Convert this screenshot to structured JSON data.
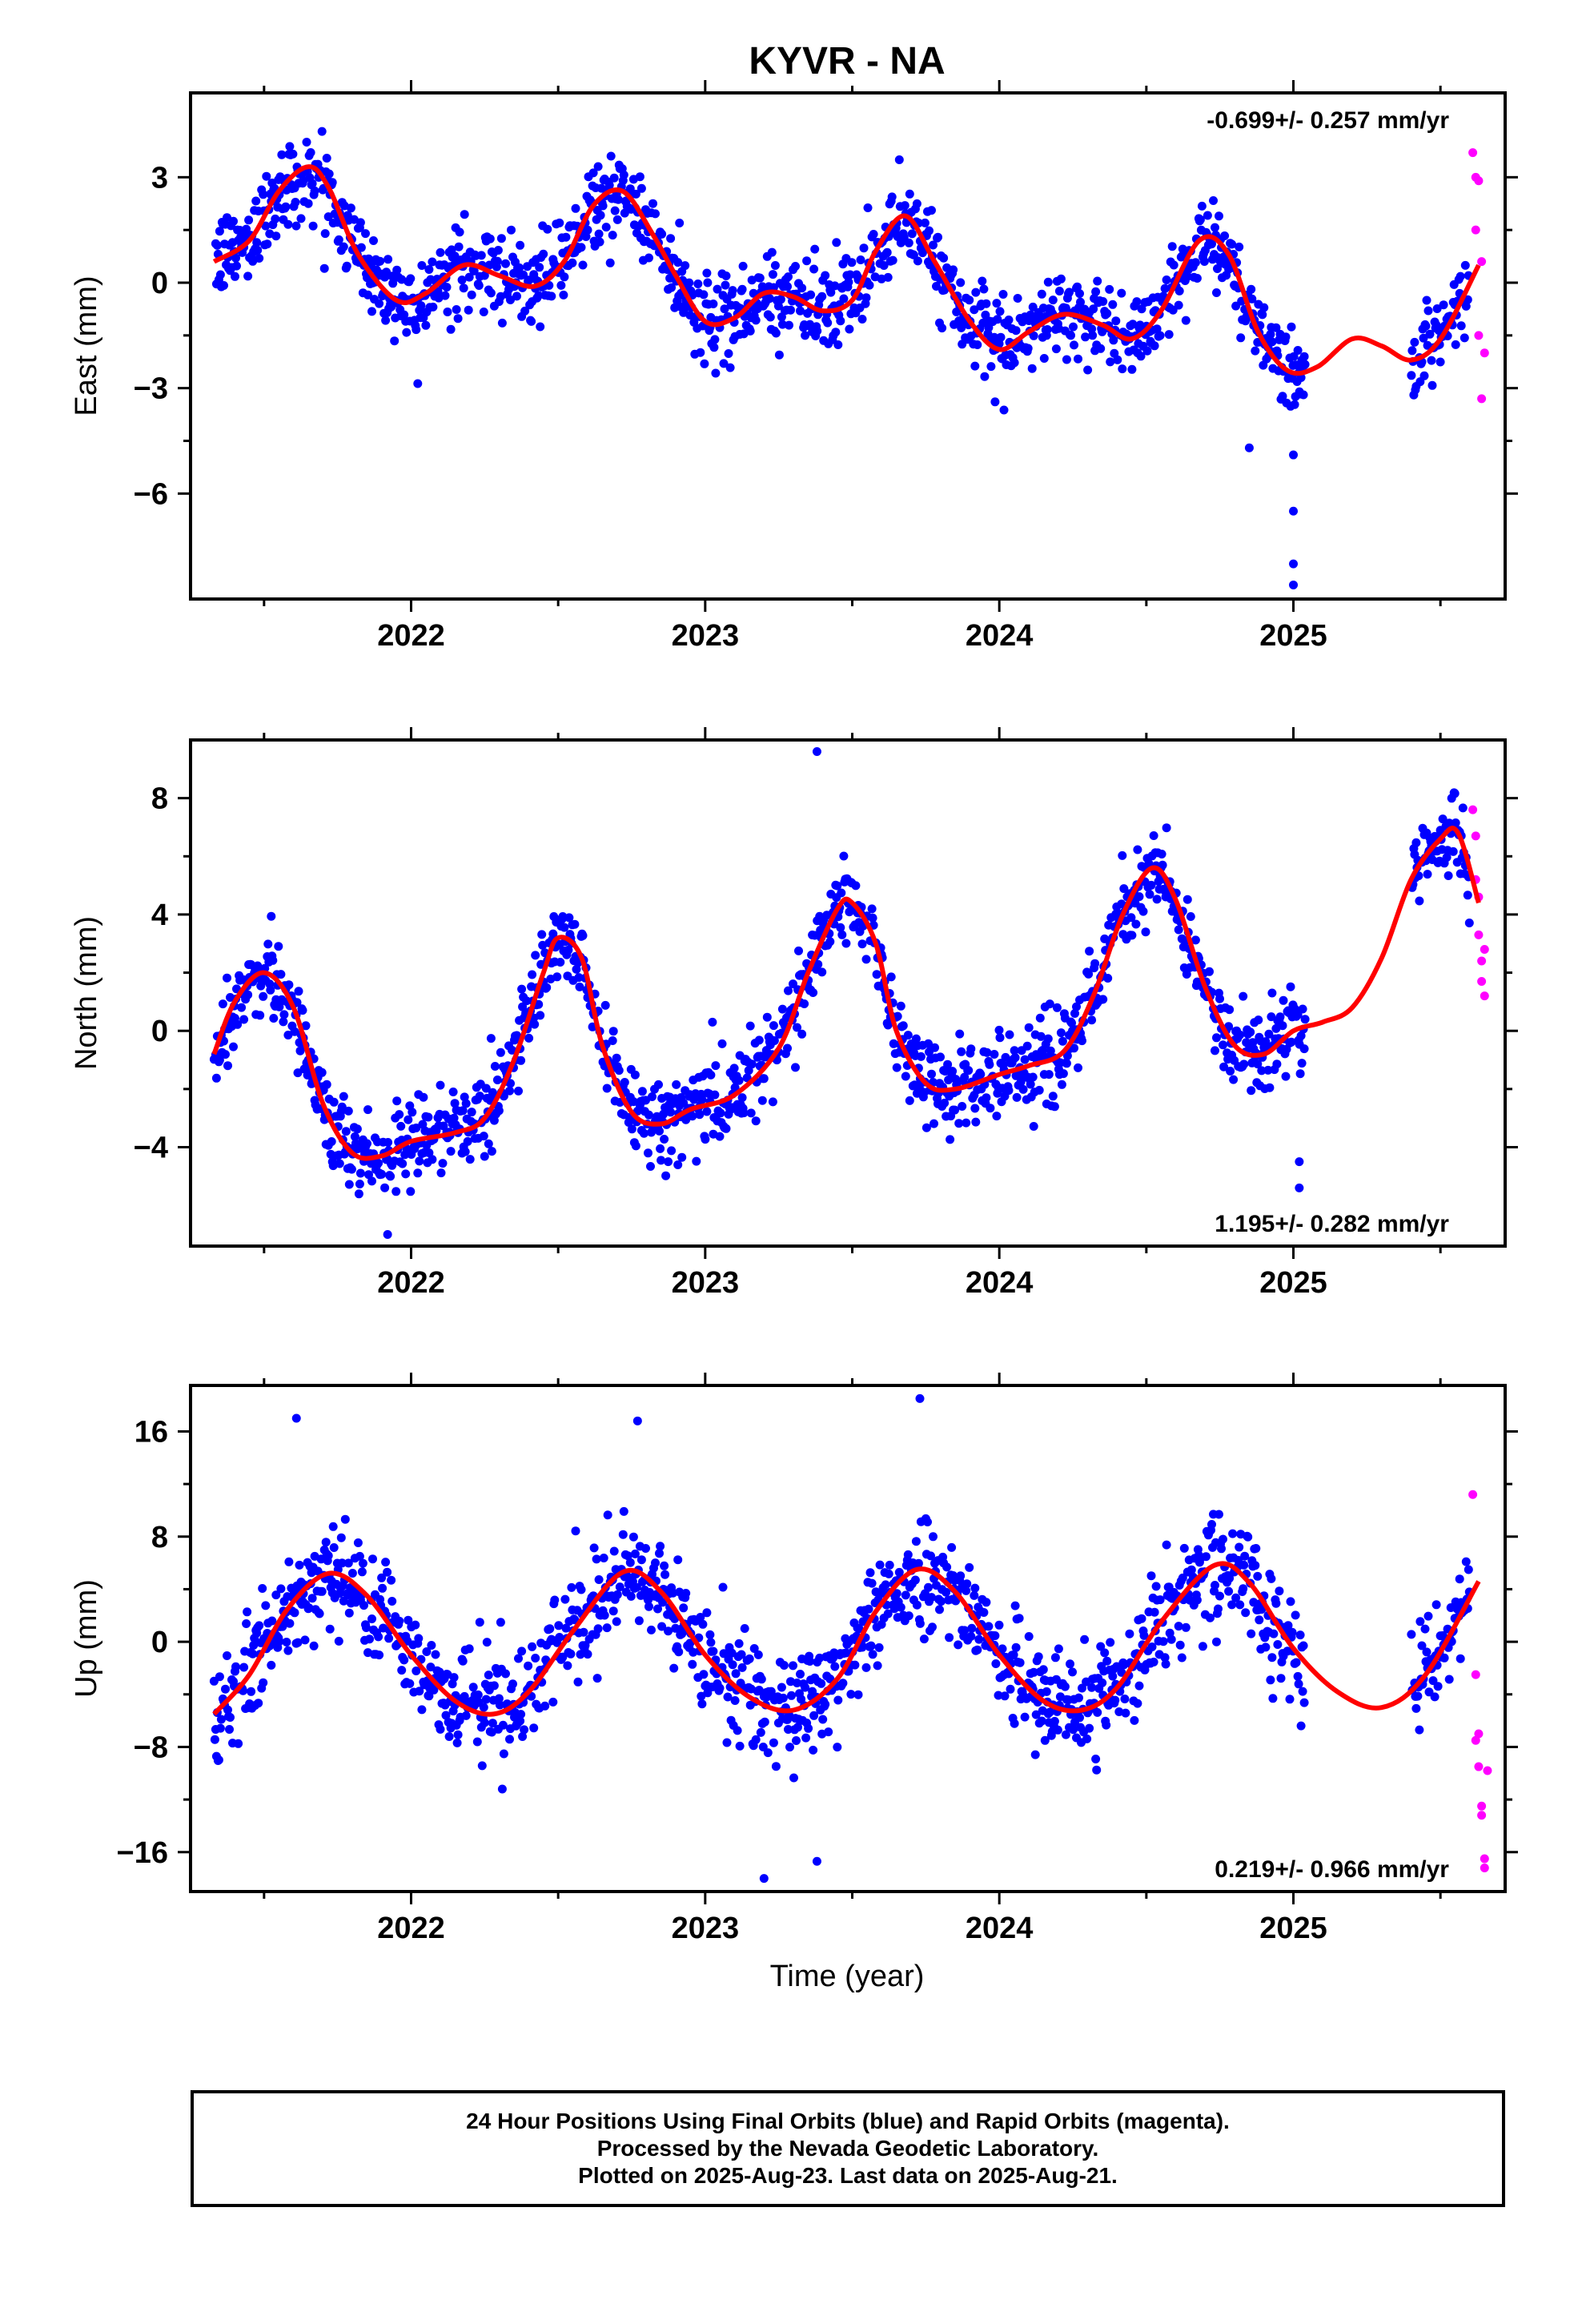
{
  "title": "KYVR - NA",
  "xlabel": "Time (year)",
  "colors": {
    "final": "#0000ff",
    "rapid": "#ff00ff",
    "fit": "#ff0000",
    "axes": "#000000"
  },
  "caption": [
    "24 Hour Positions Using Final Orbits (blue) and Rapid Orbits (magenta).",
    "Processed by the Nevada Geodetic Laboratory.",
    "Plotted on 2025-Aug-23. Last data on 2025-Aug-21."
  ],
  "chart_data": [
    {
      "type": "scatter",
      "ylabel": "East (mm)",
      "rate": "-0.699+/- 0.257 mm/yr",
      "xlim": [
        2021.25,
        2025.72
      ],
      "ylim": [
        -9.0,
        5.4
      ],
      "yticks": [
        3,
        0,
        -3,
        -6
      ],
      "xticks": [
        2022,
        2023,
        2024,
        2025
      ],
      "fit": {
        "x": [
          2021.33,
          2021.45,
          2021.55,
          2021.65,
          2021.72,
          2021.82,
          2021.95,
          2022.05,
          2022.18,
          2022.3,
          2022.42,
          2022.52,
          2022.62,
          2022.72,
          2022.82,
          2022.9,
          2023.0,
          2023.1,
          2023.2,
          2023.3,
          2023.4,
          2023.5,
          2023.58,
          2023.68,
          2023.78,
          2023.9,
          2024.0,
          2024.1,
          2024.22,
          2024.35,
          2024.45,
          2024.55,
          2024.68,
          2024.78,
          2024.88,
          2024.98,
          2025.08,
          2025.2,
          2025.3,
          2025.4,
          2025.5,
          2025.63
        ],
        "y": [
          0.6,
          1.2,
          2.6,
          3.3,
          2.7,
          0.8,
          -0.5,
          -0.3,
          0.5,
          0.2,
          -0.1,
          0.6,
          2.2,
          2.6,
          1.4,
          0.2,
          -1.1,
          -1.0,
          -0.3,
          -0.4,
          -0.8,
          -0.5,
          0.9,
          1.9,
          0.6,
          -1.1,
          -1.9,
          -1.4,
          -0.9,
          -1.2,
          -1.6,
          -0.8,
          1.2,
          0.8,
          -1.4,
          -2.5,
          -2.4,
          -1.6,
          -1.8,
          -2.2,
          -1.6,
          0.5
        ]
      },
      "final_model": {
        "amp": 1.6,
        "shift": 0.35,
        "scatter": 1.0
      },
      "rapid": {
        "x": [
          2025.61,
          2025.62,
          2025.62,
          2025.63,
          2025.63,
          2025.64,
          2025.64,
          2025.65
        ],
        "y": [
          3.7,
          3.0,
          1.5,
          -1.5,
          2.9,
          -3.3,
          0.6,
          -2.0
        ]
      },
      "outliers": {
        "x": [
          2025.0,
          2025.0,
          2025.0,
          2024.85,
          2025.0
        ],
        "y": [
          -6.5,
          -8.0,
          -8.6,
          -4.7,
          -4.9
        ]
      }
    },
    {
      "type": "scatter",
      "ylabel": "North (mm)",
      "rate": "1.195+/- 0.282 mm/yr",
      "xlim": [
        2021.25,
        2025.72
      ],
      "ylim": [
        -7.4,
        10.0
      ],
      "yticks": [
        8,
        4,
        0,
        -4
      ],
      "xticks": [
        2022,
        2023,
        2024,
        2025
      ],
      "fit": {
        "x": [
          2021.33,
          2021.4,
          2021.5,
          2021.6,
          2021.7,
          2021.8,
          2021.9,
          2022.0,
          2022.15,
          2022.25,
          2022.35,
          2022.45,
          2022.5,
          2022.58,
          2022.65,
          2022.75,
          2022.85,
          2022.95,
          2023.1,
          2023.25,
          2023.35,
          2023.45,
          2023.5,
          2023.58,
          2023.65,
          2023.75,
          2023.85,
          2024.0,
          2024.1,
          2024.22,
          2024.32,
          2024.42,
          2024.52,
          2024.6,
          2024.7,
          2024.8,
          2024.9,
          2025.0,
          2025.1,
          2025.2,
          2025.3,
          2025.4,
          2025.5,
          2025.56,
          2025.63
        ],
        "y": [
          -0.8,
          1.0,
          2.0,
          0.8,
          -2.5,
          -4.2,
          -4.3,
          -3.8,
          -3.5,
          -3.0,
          -1.0,
          2.0,
          3.2,
          2.5,
          -0.5,
          -2.8,
          -3.2,
          -2.7,
          -2.2,
          -0.6,
          2.0,
          4.2,
          4.4,
          3.0,
          0.0,
          -1.8,
          -2.0,
          -1.5,
          -1.2,
          -0.7,
          1.2,
          4.0,
          5.6,
          4.5,
          1.5,
          -0.5,
          -0.8,
          0.0,
          0.3,
          0.8,
          2.5,
          5.2,
          6.6,
          6.8,
          4.4
        ]
      },
      "final_model": {
        "amp": 1.2,
        "shift": 0.0,
        "scatter": 1.2
      },
      "rapid": {
        "x": [
          2025.61,
          2025.62,
          2025.62,
          2025.63,
          2025.63,
          2025.64,
          2025.64,
          2025.65,
          2025.65
        ],
        "y": [
          7.6,
          6.7,
          5.2,
          4.6,
          3.3,
          2.4,
          1.7,
          1.2,
          2.8
        ]
      },
      "outliers": {
        "x": [
          2023.38,
          2025.02,
          2025.02,
          2021.92
        ],
        "y": [
          9.6,
          -5.4,
          -4.5,
          -7.0
        ]
      }
    },
    {
      "type": "scatter",
      "ylabel": "Up (mm)",
      "rate": "0.219+/- 0.966 mm/yr",
      "xlim": [
        2021.25,
        2025.72
      ],
      "ylim": [
        -19.0,
        19.5
      ],
      "yticks": [
        16,
        8,
        0,
        -8,
        -16
      ],
      "xticks": [
        2022,
        2023,
        2024,
        2025
      ],
      "fit": {
        "x": [
          2021.33,
          2021.45,
          2021.58,
          2021.72,
          2021.85,
          2022.0,
          2022.15,
          2022.28,
          2022.4,
          2022.55,
          2022.72,
          2022.85,
          2023.0,
          2023.15,
          2023.3,
          2023.45,
          2023.58,
          2023.72,
          2023.85,
          2024.0,
          2024.15,
          2024.28,
          2024.4,
          2024.55,
          2024.73,
          2024.85,
          2025.0,
          2025.15,
          2025.3,
          2025.45,
          2025.63
        ],
        "y": [
          -5.5,
          -2.5,
          2.5,
          5.2,
          3.5,
          -1.0,
          -4.5,
          -5.5,
          -3.8,
          0.8,
          5.3,
          3.8,
          -1.0,
          -4.2,
          -5.2,
          -2.8,
          2.3,
          5.5,
          3.8,
          -1.0,
          -4.5,
          -5.2,
          -3.5,
          1.5,
          5.8,
          4.5,
          -0.5,
          -3.8,
          -5.0,
          -2.5,
          4.6
        ]
      },
      "final_model": {
        "amp": 0,
        "shift": 0.0,
        "scatter": 3.4
      },
      "rapid": {
        "x": [
          2025.61,
          2025.62,
          2025.62,
          2025.63,
          2025.63,
          2025.64,
          2025.64,
          2025.65,
          2025.65,
          2025.66
        ],
        "y": [
          11.2,
          -2.5,
          -7.5,
          -7.0,
          -9.5,
          -12.5,
          -13.2,
          -16.5,
          -17.2,
          -9.8
        ]
      },
      "outliers": {
        "x": [
          2021.61,
          2023.73,
          2022.77,
          2023.2,
          2023.38
        ],
        "y": [
          17.0,
          18.5,
          16.8,
          -18.0,
          -16.7
        ]
      }
    }
  ]
}
